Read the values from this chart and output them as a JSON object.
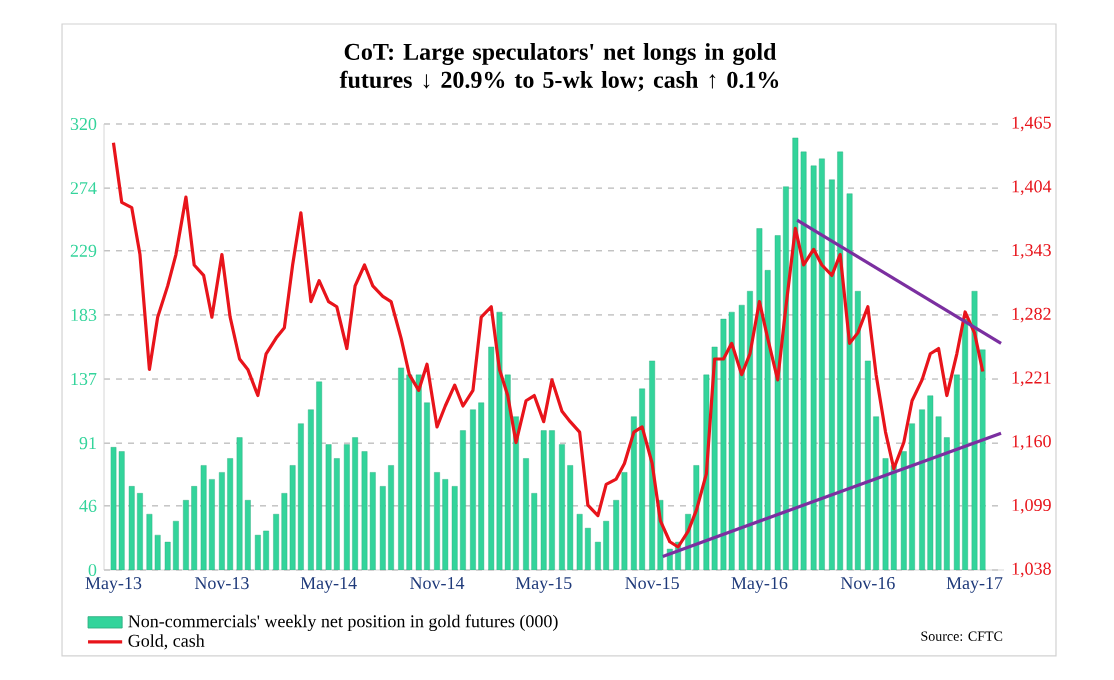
{
  "chart_data": {
    "type": "bar",
    "title": "CoT: Large speculators' net longs in gold futures ↓ 20.9% to 5-wk low; cash ↑ 0.1%",
    "annotations": [
      "Source: CFTC"
    ],
    "x": [
      "2013-05-01",
      "2013-05-15",
      "2013-06-01",
      "2013-06-15",
      "2013-07-01",
      "2013-07-15",
      "2013-08-01",
      "2013-08-15",
      "2013-09-01",
      "2013-09-15",
      "2013-10-01",
      "2013-10-15",
      "2013-11-01",
      "2013-11-15",
      "2013-12-01",
      "2013-12-15",
      "2014-01-01",
      "2014-01-15",
      "2014-02-01",
      "2014-02-15",
      "2014-03-01",
      "2014-03-15",
      "2014-04-01",
      "2014-04-15",
      "2014-05-01",
      "2014-05-15",
      "2014-06-01",
      "2014-06-15",
      "2014-07-01",
      "2014-07-15",
      "2014-08-01",
      "2014-08-15",
      "2014-09-01",
      "2014-09-15",
      "2014-10-01",
      "2014-10-15",
      "2014-11-01",
      "2014-11-15",
      "2014-12-01",
      "2014-12-15",
      "2015-01-01",
      "2015-01-15",
      "2015-02-01",
      "2015-02-15",
      "2015-03-01",
      "2015-03-15",
      "2015-04-01",
      "2015-04-15",
      "2015-05-01",
      "2015-05-15",
      "2015-06-01",
      "2015-06-15",
      "2015-07-01",
      "2015-07-15",
      "2015-08-01",
      "2015-08-15",
      "2015-09-01",
      "2015-09-15",
      "2015-10-01",
      "2015-10-15",
      "2015-11-01",
      "2015-11-15",
      "2015-12-01",
      "2015-12-15",
      "2016-01-01",
      "2016-01-15",
      "2016-02-01",
      "2016-02-15",
      "2016-03-01",
      "2016-03-15",
      "2016-04-01",
      "2016-04-15",
      "2016-05-01",
      "2016-05-15",
      "2016-06-01",
      "2016-06-15",
      "2016-07-01",
      "2016-07-15",
      "2016-08-01",
      "2016-08-15",
      "2016-09-01",
      "2016-09-15",
      "2016-10-01",
      "2016-10-15",
      "2016-11-01",
      "2016-11-15",
      "2016-12-01",
      "2016-12-15",
      "2017-01-01",
      "2017-01-15",
      "2017-02-01",
      "2017-02-15",
      "2017-03-01",
      "2017-03-15",
      "2017-04-01",
      "2017-04-15",
      "2017-05-01",
      "2017-05-15"
    ],
    "series": [
      {
        "name": "Non-commercials' weekly net position in gold futures (000)",
        "color": "#33d49b",
        "values": [
          88,
          85,
          60,
          55,
          40,
          25,
          20,
          35,
          50,
          60,
          75,
          65,
          70,
          80,
          95,
          50,
          25,
          28,
          40,
          55,
          75,
          105,
          115,
          135,
          90,
          80,
          90,
          95,
          85,
          70,
          60,
          75,
          145,
          140,
          140,
          120,
          70,
          65,
          60,
          100,
          115,
          120,
          160,
          185,
          140,
          110,
          80,
          55,
          100,
          100,
          90,
          75,
          40,
          30,
          20,
          35,
          50,
          70,
          110,
          130,
          150,
          50,
          15,
          20,
          40,
          75,
          140,
          160,
          180,
          185,
          190,
          200,
          245,
          215,
          240,
          275,
          310,
          300,
          290,
          295,
          280,
          300,
          270,
          200,
          150,
          110,
          80,
          75,
          85,
          105,
          115,
          125,
          110,
          95,
          140,
          180,
          200,
          158
        ]
      },
      {
        "name": "Gold, cash",
        "type": "line",
        "axis": "y2",
        "color": "#e8141b",
        "values": [
          1447,
          1390,
          1385,
          1340,
          1230,
          1280,
          1310,
          1340,
          1395,
          1330,
          1320,
          1280,
          1340,
          1280,
          1240,
          1230,
          1205,
          1245,
          1260,
          1270,
          1330,
          1380,
          1295,
          1315,
          1295,
          1290,
          1250,
          1310,
          1330,
          1310,
          1300,
          1295,
          1260,
          1225,
          1210,
          1235,
          1175,
          1195,
          1215,
          1195,
          1210,
          1280,
          1290,
          1230,
          1205,
          1160,
          1200,
          1205,
          1180,
          1220,
          1190,
          1180,
          1170,
          1100,
          1090,
          1120,
          1125,
          1140,
          1170,
          1175,
          1140,
          1085,
          1065,
          1060,
          1075,
          1095,
          1130,
          1240,
          1240,
          1255,
          1225,
          1245,
          1295,
          1260,
          1220,
          1290,
          1365,
          1330,
          1345,
          1330,
          1320,
          1340,
          1255,
          1265,
          1290,
          1225,
          1170,
          1135,
          1160,
          1200,
          1220,
          1245,
          1250,
          1205,
          1245,
          1285,
          1265,
          1228
        ]
      },
      {
        "type": "line",
        "axis": "y2",
        "color": "#7b2fa0",
        "x": [
          "2016-07-04",
          "2017-06-15"
        ],
        "values": [
          1373,
          1255
        ]
      },
      {
        "type": "line",
        "axis": "y2",
        "color": "#7b2fa0",
        "x": [
          "2015-11-19",
          "2017-06-15"
        ],
        "values": [
          1051,
          1169
        ]
      }
    ],
    "xlim": [
      "2013-04-15",
      "2017-06-20"
    ],
    "xticks": [
      {
        "value": "2013-05-01",
        "label": "May-13"
      },
      {
        "value": "2013-11-01",
        "label": "Nov-13"
      },
      {
        "value": "2014-05-01",
        "label": "May-14"
      },
      {
        "value": "2014-11-01",
        "label": "Nov-14"
      },
      {
        "value": "2015-05-01",
        "label": "May-15"
      },
      {
        "value": "2015-11-01",
        "label": "Nov-15"
      },
      {
        "value": "2016-05-01",
        "label": "May-16"
      },
      {
        "value": "2016-11-01",
        "label": "Nov-16"
      },
      {
        "value": "2017-05-01",
        "label": "May-17"
      }
    ],
    "ylim": [
      0,
      320
    ],
    "yticks": [
      0,
      46,
      91,
      137,
      183,
      229,
      274,
      320
    ],
    "y2lim": [
      1038,
      1465
    ],
    "y2ticks": [
      {
        "value": 1038,
        "label": "1,038"
      },
      {
        "value": 1099,
        "label": "1,099"
      },
      {
        "value": 1160,
        "label": "1,160"
      },
      {
        "value": 1221,
        "label": "1,221"
      },
      {
        "value": 1282,
        "label": "1,282"
      },
      {
        "value": 1343,
        "label": "1,343"
      },
      {
        "value": 1404,
        "label": "1,404"
      },
      {
        "value": 1465,
        "label": "1,465"
      }
    ],
    "grid": "y",
    "legend": "bottom",
    "marker": "none",
    "line_style": "solid"
  }
}
